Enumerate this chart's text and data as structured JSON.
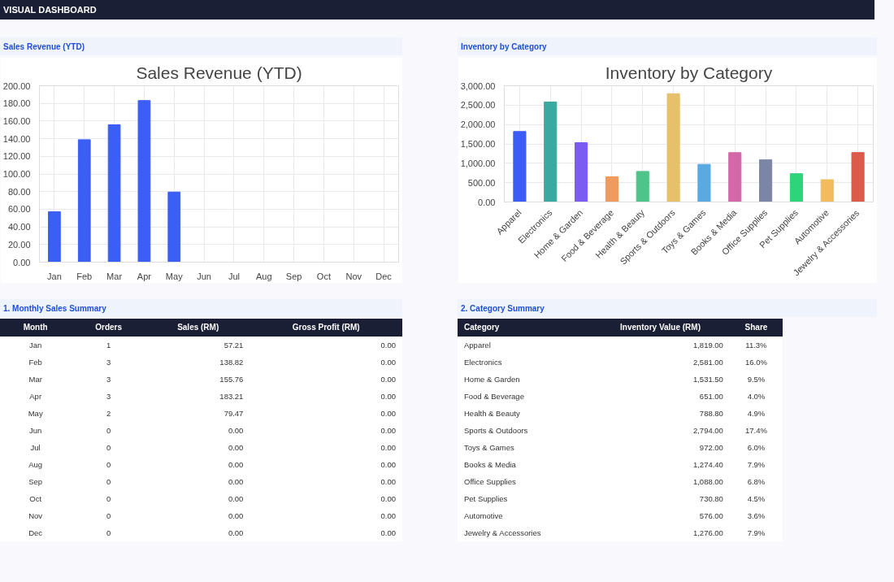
{
  "chart_data": [
    {
      "type": "bar",
      "title": "Sales Revenue (YTD)",
      "subtitle": "Sales Revenue (YTD)",
      "annotations": [
        "VISUAL DASHBOARD"
      ],
      "categories": [
        "Jan",
        "Feb",
        "Mar",
        "Apr",
        "May",
        "Jun",
        "Jul",
        "Aug",
        "Sep",
        "Oct",
        "Nov",
        "Dec"
      ],
      "values": [
        57.21,
        138.82,
        155.76,
        183.21,
        79.47,
        0,
        0,
        0,
        0,
        0,
        0,
        0
      ],
      "color": "#3b5ef5",
      "ylim": [
        0,
        200
      ],
      "yticks": [
        {
          "value": 0,
          "label": "0.00"
        },
        {
          "value": 20,
          "label": "20.00"
        },
        {
          "value": 40,
          "label": "40.00"
        },
        {
          "value": 60,
          "label": "60.00"
        },
        {
          "value": 80,
          "label": "80.00"
        },
        {
          "value": 100,
          "label": "100.00"
        },
        {
          "value": 120,
          "label": "120.00"
        },
        {
          "value": 140,
          "label": "140.00"
        },
        {
          "value": 160,
          "label": "160.00"
        },
        {
          "value": 180,
          "label": "180.00"
        },
        {
          "value": 200,
          "label": "200.00"
        }
      ],
      "grid": true
    },
    {
      "type": "bar",
      "title": "Inventory by Category",
      "subtitle": "Inventory by Category",
      "categories": [
        "Apparel",
        "Electronics",
        "Home & Garden",
        "Food & Beverage",
        "Health & Beauty",
        "Sports & Outdoors",
        "Toys & Games",
        "Books & Media",
        "Office Supplies",
        "Pet Supplies",
        "Automotive",
        "Jewelry & Accessories"
      ],
      "values": [
        1819,
        2581,
        1531.5,
        651,
        788.8,
        2794,
        972,
        1274.4,
        1088,
        730.8,
        576,
        1276
      ],
      "colors": [
        "#3d5cf5",
        "#3aa99f",
        "#7b5cf0",
        "#ef9a5e",
        "#4fc48a",
        "#e6c06a",
        "#5aa9e0",
        "#d467a8",
        "#7b86a6",
        "#2ed47a",
        "#f2bb5e",
        "#dc5a4a"
      ],
      "ylim": [
        0,
        3000
      ],
      "yticks": [
        {
          "value": 0,
          "label": "0.00"
        },
        {
          "value": 500,
          "label": "500.00"
        },
        {
          "value": 1000,
          "label": "1,000.00"
        },
        {
          "value": 1500,
          "label": "1,500.00"
        },
        {
          "value": 2000,
          "label": "2,000.00"
        },
        {
          "value": 2500,
          "label": "2,500.00"
        },
        {
          "value": 3000,
          "label": "3,000.00"
        }
      ],
      "grid": true
    },
    {
      "type": "other",
      "title": "1. Monthly Sales Summary",
      "xlabel": "Month",
      "categories": [
        "Jan",
        "Feb",
        "Mar",
        "Apr",
        "May",
        "Jun",
        "Jul",
        "Aug",
        "Sep",
        "Oct",
        "Nov",
        "Dec"
      ],
      "series": [
        {
          "name": "Orders",
          "values": [
            1,
            3,
            3,
            3,
            2,
            0,
            0,
            0,
            0,
            0,
            0,
            0
          ],
          "value_labels": [
            "1",
            "3",
            "3",
            "3",
            "2",
            "0",
            "0",
            "0",
            "0",
            "0",
            "0",
            "0"
          ]
        },
        {
          "name": "Sales (RM)",
          "values": [
            57.21,
            138.82,
            155.76,
            183.21,
            79.47,
            0,
            0,
            0,
            0,
            0,
            0,
            0
          ],
          "value_labels": [
            "57.21",
            "138.82",
            "155.76",
            "183.21",
            "79.47",
            "0.00",
            "0.00",
            "0.00",
            "0.00",
            "0.00",
            "0.00",
            "0.00"
          ]
        },
        {
          "name": "Gross Profit (RM)",
          "values": [
            0,
            0,
            0,
            0,
            0,
            0,
            0,
            0,
            0,
            0,
            0,
            0
          ],
          "value_labels": [
            "0.00",
            "0.00",
            "0.00",
            "0.00",
            "0.00",
            "0.00",
            "0.00",
            "0.00",
            "0.00",
            "0.00",
            "0.00",
            "0.00"
          ]
        }
      ]
    },
    {
      "type": "other",
      "title": "2. Category Summary",
      "xlabel": "Category",
      "categories": [
        "Apparel",
        "Electronics",
        "Home & Garden",
        "Food & Beverage",
        "Health & Beauty",
        "Sports & Outdoors",
        "Toys & Games",
        "Books & Media",
        "Office Supplies",
        "Pet Supplies",
        "Automotive",
        "Jewelry & Accessories"
      ],
      "series": [
        {
          "name": "Inventory Value (RM)",
          "values": [
            1819,
            2581,
            1531.5,
            651,
            788.8,
            2794,
            972,
            1274.4,
            1088,
            730.8,
            576,
            1276
          ],
          "value_labels": [
            "1,819.00",
            "2,581.00",
            "1,531.50",
            "651.00",
            "788.80",
            "2,794.00",
            "972.00",
            "1,274.40",
            "1,088.00",
            "730.80",
            "576.00",
            "1,276.00"
          ]
        },
        {
          "name": "Share",
          "values": [
            11.3,
            16.0,
            9.5,
            4.0,
            4.9,
            17.4,
            6.0,
            7.9,
            6.8,
            4.5,
            3.6,
            7.9
          ],
          "value_labels": [
            "11.3%",
            "16.0%",
            "9.5%",
            "4.0%",
            "4.9%",
            "17.4%",
            "6.0%",
            "7.9%",
            "6.8%",
            "4.5%",
            "3.6%",
            "7.9%"
          ]
        }
      ]
    }
  ]
}
